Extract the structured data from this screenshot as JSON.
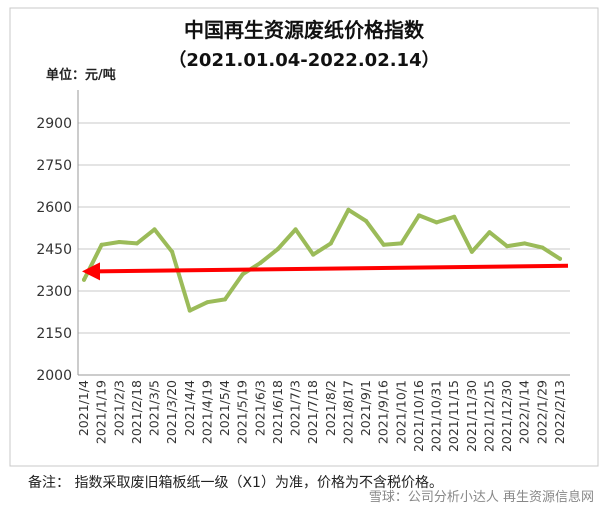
{
  "chart_data": {
    "type": "line",
    "title": "中国再生资源废纸价格指数",
    "subtitle": "（2021.01.04-2022.02.14）",
    "ylabel": "单位：元/吨",
    "xlabel": "",
    "ylim": [
      2000,
      3000
    ],
    "yticks": [
      "2000",
      "2150",
      "2300",
      "2450",
      "2600",
      "2750",
      "2900"
    ],
    "categories": [
      "2021/1/4",
      "2021/1/19",
      "2021/2/3",
      "2021/2/18",
      "2021/3/5",
      "2021/3/20",
      "2021/4/4",
      "2021/4/19",
      "2021/5/4",
      "2021/5/19",
      "2021/6/3",
      "2021/6/18",
      "2021/7/3",
      "2021/7/18",
      "2021/8/2",
      "2021/8/17",
      "2021/9/1",
      "2021/9/16",
      "2021/10/1",
      "2021/10/16",
      "2021/10/31",
      "2021/11/15",
      "2021/11/30",
      "2021/12/15",
      "2021/12/30",
      "2022/1/14",
      "2022/1/29",
      "2022/2/13"
    ],
    "grid": true,
    "series": [
      {
        "name": "",
        "color": "#9bbb59",
        "values": [
          2340,
          2465,
          2475,
          2470,
          2520,
          2440,
          2230,
          2260,
          2270,
          2360,
          2400,
          2450,
          2520,
          2430,
          2470,
          2590,
          2550,
          2465,
          2470,
          2570,
          2545,
          2565,
          2440,
          2510,
          2460,
          2470,
          2455,
          2415
        ]
      }
    ],
    "annotation": {
      "type": "arrow",
      "color": "#ff0000",
      "from_value": 2390,
      "to_value": 2370
    }
  },
  "note": "备注：  指数采取废旧箱板纸一级（X1）为准，价格为不含税价格。",
  "watermark": "雪球：公司分析小达人  再生资源信息网"
}
